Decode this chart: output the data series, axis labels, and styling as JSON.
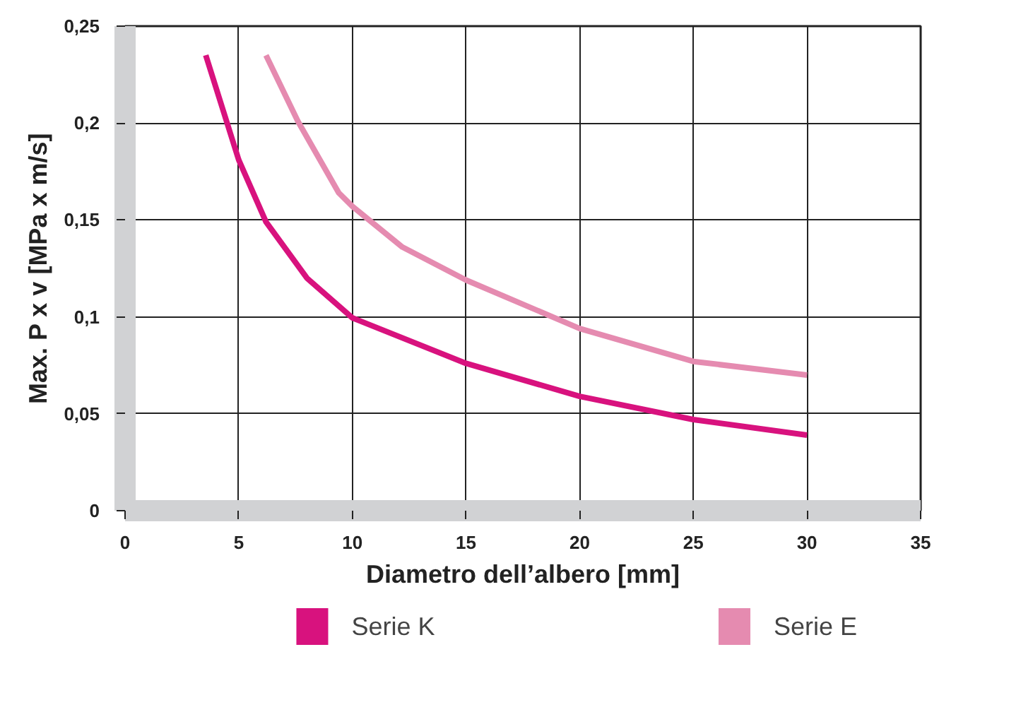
{
  "chart_data": {
    "type": "line",
    "xlabel": "Diametro dell’albero [mm]",
    "ylabel": "Max. P x v [MPa x m/s]",
    "xlim": [
      0,
      35
    ],
    "ylim": [
      0,
      0.25
    ],
    "xticks": [
      0,
      5,
      10,
      15,
      20,
      25,
      30,
      35
    ],
    "yticks": [
      {
        "value": 0,
        "label": "0"
      },
      {
        "value": 0.05,
        "label": "0,05"
      },
      {
        "value": 0.1,
        "label": "0,1"
      },
      {
        "value": 0.15,
        "label": "0,15"
      },
      {
        "value": 0.2,
        "label": "0,2"
      },
      {
        "value": 0.25,
        "label": "0,25"
      }
    ],
    "grid": true,
    "legend": "bottom",
    "line_style": "solid",
    "marker": "none",
    "series": [
      {
        "name": "Serie K",
        "color": "#d8127e",
        "x": [
          3.55,
          5,
          6.2,
          8,
          10,
          15,
          20,
          25,
          30
        ],
        "values": [
          0.235,
          0.181,
          0.149,
          0.12,
          0.0995,
          0.076,
          0.059,
          0.047,
          0.039
        ]
      },
      {
        "name": "Serie E",
        "color": "#e58bb0",
        "x": [
          6.2,
          7.6,
          9.4,
          10,
          12.2,
          15,
          20,
          25,
          30
        ],
        "values": [
          0.235,
          0.201,
          0.164,
          0.157,
          0.136,
          0.119,
          0.094,
          0.077,
          0.07
        ]
      }
    ]
  }
}
